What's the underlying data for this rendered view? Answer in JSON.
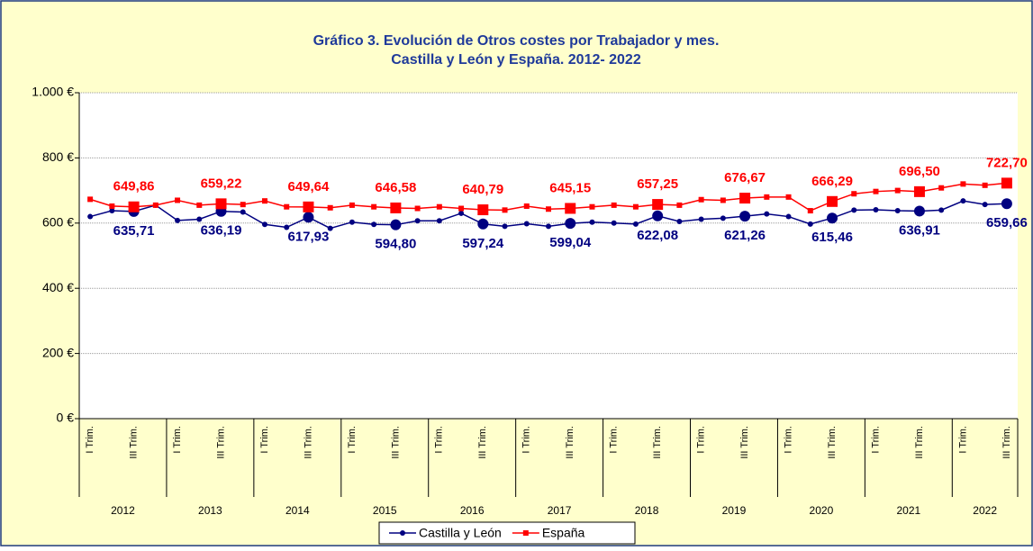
{
  "chart_data": {
    "type": "line",
    "title": [
      "Gráfico 3. Evolución de Otros costes por Trabajador y mes.",
      "Castilla y León y España. 2012- 2022"
    ],
    "categories": [
      "I Trim.",
      null,
      "III Trim.",
      null,
      "I Trim.",
      null,
      "III Trim.",
      null,
      "I Trim.",
      null,
      "III Trim.",
      null,
      "I Trim.",
      null,
      "III Trim.",
      null,
      "I Trim.",
      null,
      "III Trim.",
      null,
      "I Trim.",
      null,
      "III Trim.",
      null,
      "I Trim.",
      null,
      "III Trim.",
      null,
      "I Trim.",
      null,
      "III Trim.",
      null,
      "I Trim.",
      null,
      "III Trim.",
      null,
      "I Trim.",
      null,
      "III Trim.",
      null,
      "I Trim.",
      null,
      "III Trim."
    ],
    "years": [
      "2012",
      "2013",
      "2014",
      "2015",
      "2016",
      "2017",
      "2018",
      "2019",
      "2020",
      "2021",
      "2022"
    ],
    "series": [
      {
        "name": "Castilla y León",
        "color": "#000080",
        "values": [
          620,
          638,
          635.71,
          655,
          608,
          612,
          636.19,
          634,
          596,
          587,
          617.93,
          584,
          603,
          596,
          594.8,
          607,
          607,
          630,
          597.24,
          590,
          598,
          590,
          599.04,
          603,
          600,
          597,
          622.08,
          605,
          612,
          615,
          621.26,
          628,
          620,
          597,
          615.46,
          640,
          641,
          638,
          636.91,
          640,
          668,
          657,
          659.66
        ],
        "value_labels": [
          null,
          null,
          "635,71",
          null,
          null,
          null,
          "636,19",
          null,
          null,
          null,
          "617,93",
          null,
          null,
          null,
          "594,80",
          null,
          null,
          null,
          "597,24",
          null,
          null,
          null,
          "599,04",
          null,
          null,
          null,
          "622,08",
          null,
          null,
          null,
          "621,26",
          null,
          null,
          null,
          "615,46",
          null,
          null,
          null,
          "636,91",
          null,
          null,
          null,
          "659,66"
        ]
      },
      {
        "name": "España",
        "color": "#ff0000",
        "values": [
          673,
          652,
          649.86,
          655,
          670,
          655,
          659.22,
          657,
          668,
          650,
          649.64,
          647,
          655,
          650,
          646.58,
          645,
          650,
          645,
          640.79,
          640,
          652,
          643,
          645.15,
          650,
          655,
          650,
          657.25,
          655,
          672,
          670,
          676.67,
          680,
          680,
          638,
          666.29,
          690,
          697,
          700,
          696.5,
          708,
          720,
          716,
          722.7
        ],
        "value_labels": [
          null,
          null,
          "649,86",
          null,
          null,
          null,
          "659,22",
          null,
          null,
          null,
          "649,64",
          null,
          null,
          null,
          "646,58",
          null,
          null,
          null,
          "640,79",
          null,
          null,
          null,
          "645,15",
          null,
          null,
          null,
          "657,25",
          null,
          null,
          null,
          "676,67",
          null,
          null,
          null,
          "666,29",
          null,
          null,
          null,
          "696,50",
          null,
          null,
          null,
          "722,70"
        ]
      }
    ],
    "ylim": [
      0,
      1000
    ],
    "yticks": [
      {
        "value": 0,
        "label": "0 €"
      },
      {
        "value": 200,
        "label": "200 €"
      },
      {
        "value": 400,
        "label": "400 €"
      },
      {
        "value": 600,
        "label": "600 €"
      },
      {
        "value": 800,
        "label": "800 €"
      },
      {
        "value": 1000,
        "label": "1.000 €"
      }
    ],
    "grid": true,
    "legend": "bottom"
  }
}
